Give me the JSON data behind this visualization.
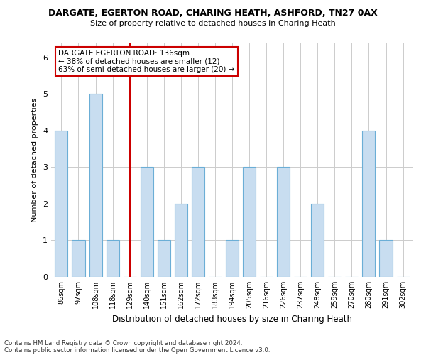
{
  "title": "DARGATE, EGERTON ROAD, CHARING HEATH, ASHFORD, TN27 0AX",
  "subtitle": "Size of property relative to detached houses in Charing Heath",
  "xlabel": "Distribution of detached houses by size in Charing Heath",
  "ylabel": "Number of detached properties",
  "footnote1": "Contains HM Land Registry data © Crown copyright and database right 2024.",
  "footnote2": "Contains public sector information licensed under the Open Government Licence v3.0.",
  "categories": [
    "86sqm",
    "97sqm",
    "108sqm",
    "118sqm",
    "129sqm",
    "140sqm",
    "151sqm",
    "162sqm",
    "172sqm",
    "183sqm",
    "194sqm",
    "205sqm",
    "216sqm",
    "226sqm",
    "237sqm",
    "248sqm",
    "259sqm",
    "270sqm",
    "280sqm",
    "291sqm",
    "302sqm"
  ],
  "values": [
    4,
    1,
    5,
    1,
    0,
    3,
    1,
    2,
    3,
    0,
    1,
    3,
    0,
    3,
    0,
    2,
    0,
    0,
    4,
    1,
    0
  ],
  "bar_color": "#c8ddf0",
  "bar_edgecolor": "#6baed6",
  "highlight_color": "#cc0000",
  "vline_index": 4,
  "annotation_text": "DARGATE EGERTON ROAD: 136sqm\n← 38% of detached houses are smaller (12)\n63% of semi-detached houses are larger (20) →",
  "annotation_box_color": "white",
  "annotation_box_edgecolor": "#cc0000",
  "ylim": [
    0,
    6.4
  ],
  "yticks": [
    0,
    1,
    2,
    3,
    4,
    5,
    6
  ],
  "background_color": "#ffffff"
}
